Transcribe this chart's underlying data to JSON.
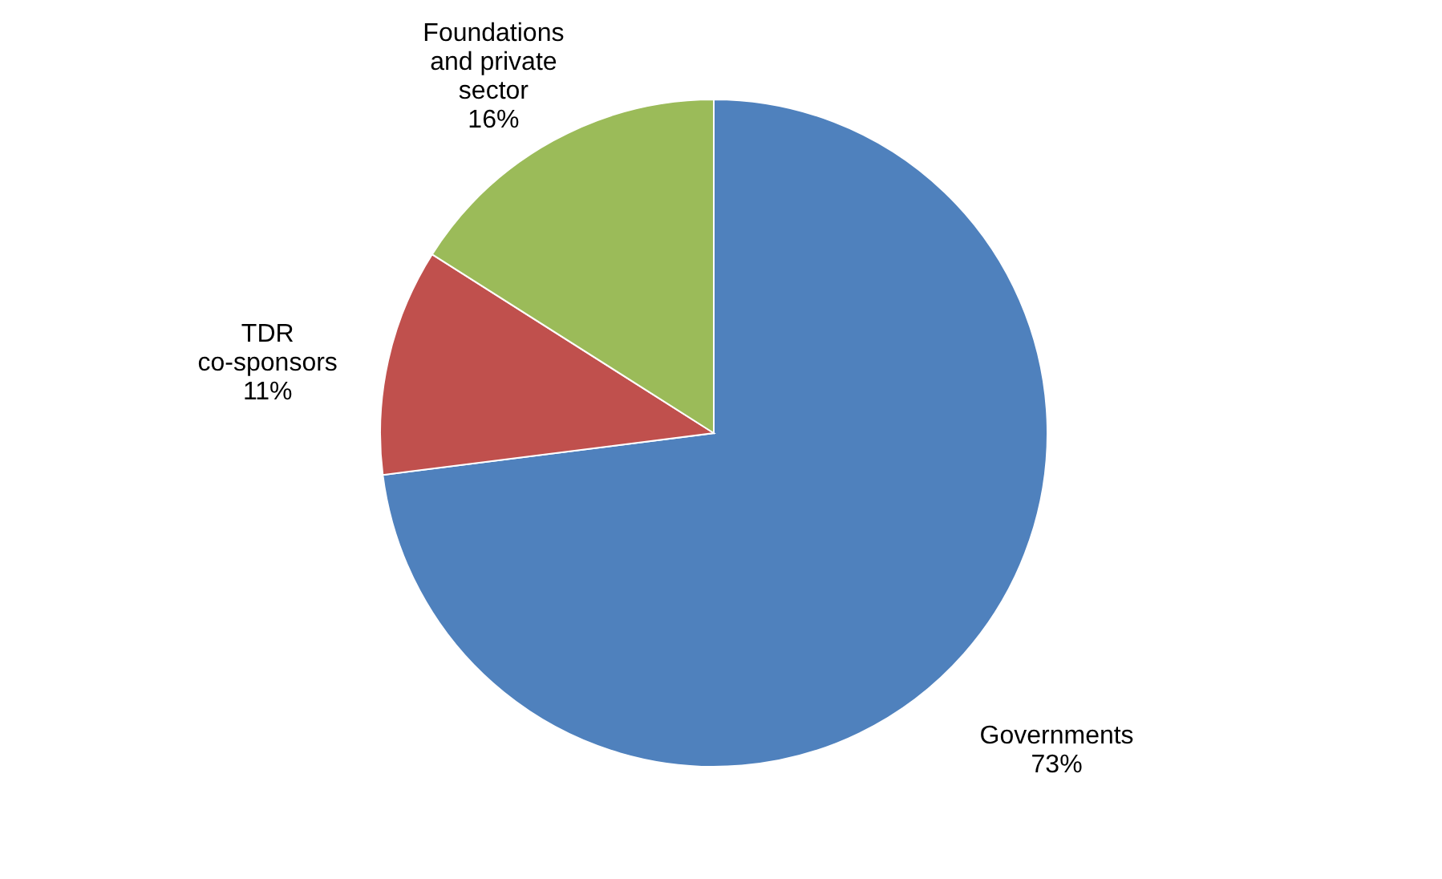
{
  "chart_data": {
    "type": "pie",
    "categories": [
      "Governments",
      "TDR co-sponsors",
      "Foundations and private sector"
    ],
    "values": [
      73,
      11,
      16
    ],
    "colors": [
      "#4f81bd",
      "#c0504d",
      "#9bbb59"
    ],
    "value_labels": [
      "73%",
      "11%",
      "16%"
    ],
    "legend": false
  }
}
